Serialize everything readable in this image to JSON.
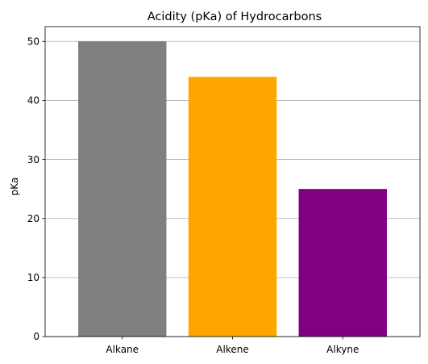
{
  "chart_data": {
    "type": "bar",
    "title": "Acidity (pKa) of Hydrocarbons",
    "xlabel": "",
    "ylabel": "pKa",
    "categories": [
      "Alkane",
      "Alkene",
      "Alkyne"
    ],
    "values": [
      50,
      44,
      25
    ],
    "colors": [
      "#808080",
      "#ffa500",
      "#800080"
    ],
    "ylim": [
      0,
      52.5
    ],
    "yticks": [
      0,
      10,
      20,
      30,
      40,
      50
    ],
    "grid": "y",
    "legend": "none"
  }
}
